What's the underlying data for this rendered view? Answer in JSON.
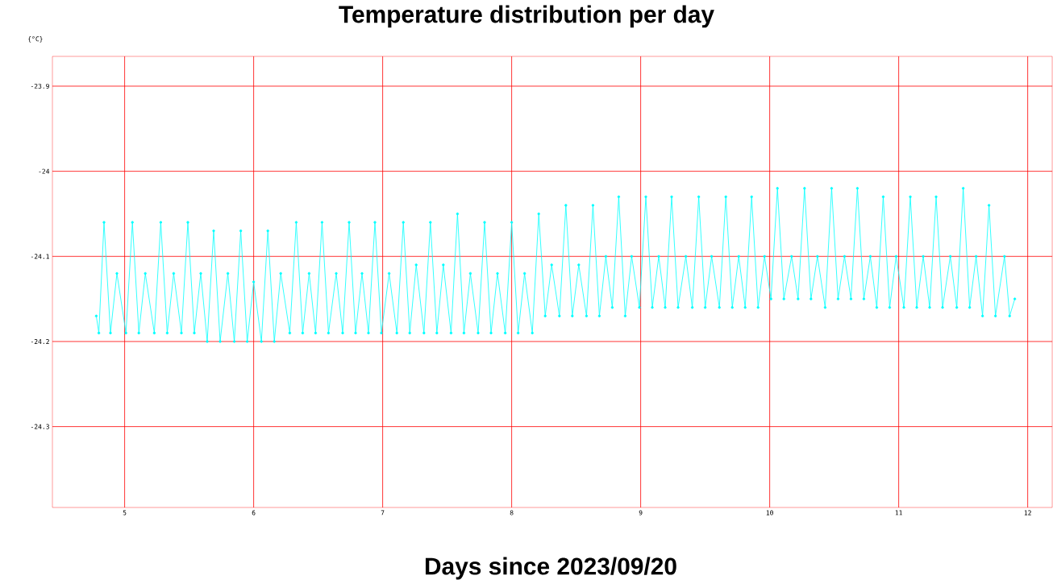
{
  "chart_data": {
    "type": "line",
    "title": "Temperature distribution per day",
    "xlabel": "Days since 2023/09/20",
    "ylabel": "{°C}",
    "xlim": [
      4.44,
      12.19
    ],
    "ylim": [
      -24.395,
      -23.865
    ],
    "xticks": [
      5,
      6,
      7,
      8,
      9,
      10,
      11,
      12
    ],
    "yticks": [
      -24.3,
      -24.2,
      -24.1,
      -24,
      -23.9
    ],
    "grid": true,
    "marker": "circle",
    "series": [
      {
        "color": "#00ffff",
        "x": [
          4.78,
          4.8,
          4.84,
          4.89,
          4.94,
          5.01,
          5.06,
          5.11,
          5.16,
          5.23,
          5.28,
          5.33,
          5.38,
          5.44,
          5.49,
          5.54,
          5.59,
          5.64,
          5.69,
          5.74,
          5.8,
          5.85,
          5.9,
          5.95,
          6.0,
          6.06,
          6.11,
          6.16,
          6.21,
          6.28,
          6.33,
          6.38,
          6.43,
          6.48,
          6.53,
          6.58,
          6.64,
          6.69,
          6.74,
          6.79,
          6.84,
          6.89,
          6.94,
          6.99,
          7.05,
          7.11,
          7.16,
          7.21,
          7.26,
          7.32,
          7.37,
          7.42,
          7.47,
          7.53,
          7.58,
          7.63,
          7.68,
          7.74,
          7.79,
          7.84,
          7.89,
          7.95,
          8.0,
          8.05,
          8.1,
          8.16,
          8.21,
          8.26,
          8.31,
          8.37,
          8.42,
          8.47,
          8.52,
          8.58,
          8.63,
          8.68,
          8.73,
          8.78,
          8.83,
          8.88,
          8.93,
          8.99,
          9.04,
          9.09,
          9.14,
          9.19,
          9.24,
          9.29,
          9.35,
          9.4,
          9.45,
          9.5,
          9.55,
          9.61,
          9.66,
          9.71,
          9.76,
          9.81,
          9.86,
          9.91,
          9.96,
          10.01,
          10.06,
          10.11,
          10.17,
          10.22,
          10.27,
          10.32,
          10.37,
          10.43,
          10.48,
          10.53,
          10.58,
          10.63,
          10.68,
          10.73,
          10.78,
          10.83,
          10.88,
          10.93,
          10.98,
          11.04,
          11.09,
          11.14,
          11.19,
          11.24,
          11.29,
          11.34,
          11.4,
          11.45,
          11.5,
          11.55,
          11.6,
          11.65,
          11.7,
          11.75,
          11.82,
          11.86,
          11.9
        ],
        "values": [
          -24.17,
          -24.19,
          -24.06,
          -24.19,
          -24.12,
          -24.19,
          -24.06,
          -24.19,
          -24.12,
          -24.19,
          -24.06,
          -24.19,
          -24.12,
          -24.19,
          -24.06,
          -24.19,
          -24.12,
          -24.2,
          -24.07,
          -24.2,
          -24.12,
          -24.2,
          -24.07,
          -24.2,
          -24.13,
          -24.2,
          -24.07,
          -24.2,
          -24.12,
          -24.19,
          -24.06,
          -24.19,
          -24.12,
          -24.19,
          -24.06,
          -24.19,
          -24.12,
          -24.19,
          -24.06,
          -24.19,
          -24.12,
          -24.19,
          -24.06,
          -24.19,
          -24.12,
          -24.19,
          -24.06,
          -24.19,
          -24.11,
          -24.19,
          -24.06,
          -24.19,
          -24.11,
          -24.19,
          -24.05,
          -24.19,
          -24.12,
          -24.19,
          -24.06,
          -24.19,
          -24.12,
          -24.19,
          -24.06,
          -24.19,
          -24.12,
          -24.19,
          -24.05,
          -24.17,
          -24.11,
          -24.17,
          -24.04,
          -24.17,
          -24.11,
          -24.17,
          -24.04,
          -24.17,
          -24.1,
          -24.16,
          -24.03,
          -24.17,
          -24.1,
          -24.16,
          -24.03,
          -24.16,
          -24.1,
          -24.16,
          -24.03,
          -24.16,
          -24.1,
          -24.16,
          -24.03,
          -24.16,
          -24.1,
          -24.16,
          -24.03,
          -24.16,
          -24.1,
          -24.16,
          -24.03,
          -24.16,
          -24.1,
          -24.15,
          -24.02,
          -24.15,
          -24.1,
          -24.15,
          -24.02,
          -24.15,
          -24.1,
          -24.16,
          -24.02,
          -24.15,
          -24.1,
          -24.15,
          -24.02,
          -24.15,
          -24.1,
          -24.16,
          -24.03,
          -24.16,
          -24.1,
          -24.16,
          -24.03,
          -24.16,
          -24.1,
          -24.16,
          -24.03,
          -24.16,
          -24.1,
          -24.16,
          -24.02,
          -24.16,
          -24.1,
          -24.17,
          -24.04,
          -24.17,
          -24.1,
          -24.17,
          -24.15
        ]
      }
    ]
  }
}
